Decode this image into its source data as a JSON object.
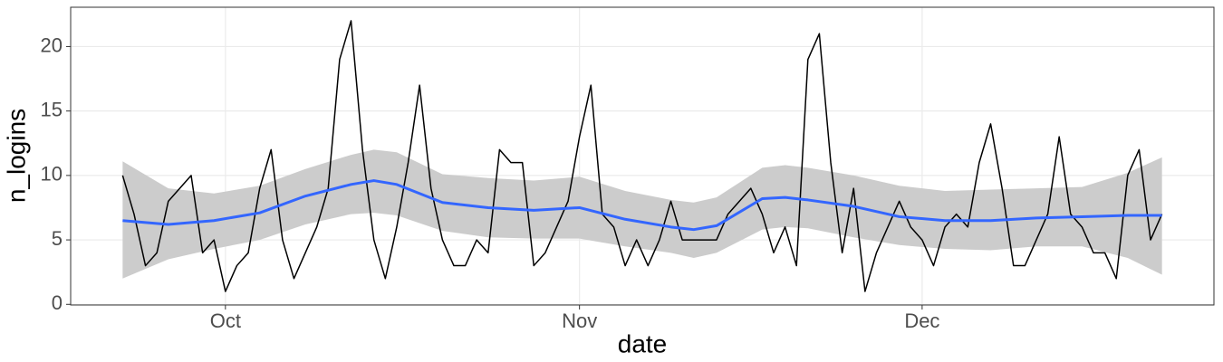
{
  "chart_data": {
    "type": "line",
    "x_label": "date",
    "y_label": "n_logins",
    "xlim": [
      -4.55,
      95.55
    ],
    "xticks": [
      {
        "value": 9,
        "label": "Oct"
      },
      {
        "value": 40,
        "label": "Nov"
      },
      {
        "value": 70,
        "label": "Dec"
      }
    ],
    "ylim": [
      -0.05,
      23.05
    ],
    "yticks": [
      0,
      5,
      10,
      15,
      20
    ],
    "grid": true,
    "series": [
      {
        "color": "#000000",
        "x": [
          0,
          1,
          2,
          3,
          4,
          5,
          6,
          7,
          8,
          9,
          10,
          11,
          12,
          13,
          14,
          15,
          16,
          17,
          18,
          19,
          20,
          21,
          22,
          23,
          24,
          25,
          26,
          27,
          28,
          29,
          30,
          31,
          32,
          33,
          34,
          35,
          36,
          37,
          38,
          39,
          40,
          41,
          42,
          43,
          44,
          45,
          46,
          47,
          48,
          49,
          50,
          51,
          52,
          53,
          54,
          55,
          56,
          57,
          58,
          59,
          60,
          61,
          62,
          63,
          64,
          65,
          66,
          67,
          68,
          69,
          70,
          71,
          72,
          73,
          74,
          75,
          76,
          77,
          78,
          79,
          80,
          81,
          82,
          83,
          84,
          85,
          86,
          87,
          88,
          89,
          90,
          91
        ],
        "values": [
          10,
          7,
          3,
          4,
          8,
          9,
          10,
          4,
          5,
          1,
          3,
          4,
          9,
          12,
          5,
          2,
          4,
          6,
          9,
          19,
          22,
          12,
          5,
          2,
          6,
          11,
          17,
          9,
          5,
          3,
          3,
          5,
          4,
          12,
          11,
          11,
          3,
          4,
          6,
          8,
          13,
          17,
          7,
          6,
          3,
          5,
          3,
          5,
          8,
          5,
          5,
          5,
          5,
          7,
          8,
          9,
          7,
          4,
          6,
          3,
          19,
          21,
          11,
          4,
          9,
          1,
          4,
          6,
          8,
          6,
          5,
          3,
          6,
          7,
          6,
          11,
          14,
          9,
          3,
          3,
          5,
          7,
          13,
          7,
          6,
          4,
          4,
          2,
          10,
          12,
          5,
          7
        ]
      },
      {
        "color": "#3366ff",
        "band_color": "#cccccc",
        "x": [
          0,
          4,
          8,
          12,
          16,
          20,
          22,
          24,
          28,
          32,
          36,
          40,
          44,
          48,
          50,
          52,
          56,
          58,
          60,
          64,
          68,
          72,
          76,
          80,
          84,
          88,
          91
        ],
        "values": [
          6.5,
          6.2,
          6.5,
          7.1,
          8.4,
          9.3,
          9.6,
          9.3,
          7.9,
          7.5,
          7.3,
          7.5,
          6.6,
          6.0,
          5.8,
          6.1,
          8.2,
          8.3,
          8.1,
          7.6,
          6.8,
          6.5,
          6.5,
          6.7,
          6.8,
          6.9,
          6.9
        ],
        "lower": [
          2.0,
          3.5,
          4.3,
          5.0,
          6.2,
          7.0,
          7.1,
          6.9,
          5.7,
          5.2,
          5.1,
          5.1,
          4.5,
          4.0,
          3.6,
          4.0,
          5.8,
          6.0,
          5.9,
          5.2,
          4.6,
          4.3,
          4.2,
          4.5,
          4.5,
          3.6,
          2.3
        ],
        "upper": [
          11.1,
          9.0,
          8.6,
          9.2,
          10.5,
          11.6,
          12.0,
          11.8,
          10.1,
          9.8,
          9.6,
          9.9,
          8.8,
          8.1,
          7.9,
          8.3,
          10.6,
          10.8,
          10.6,
          10.0,
          9.2,
          8.8,
          8.9,
          9.0,
          9.1,
          10.2,
          11.4
        ]
      }
    ]
  }
}
